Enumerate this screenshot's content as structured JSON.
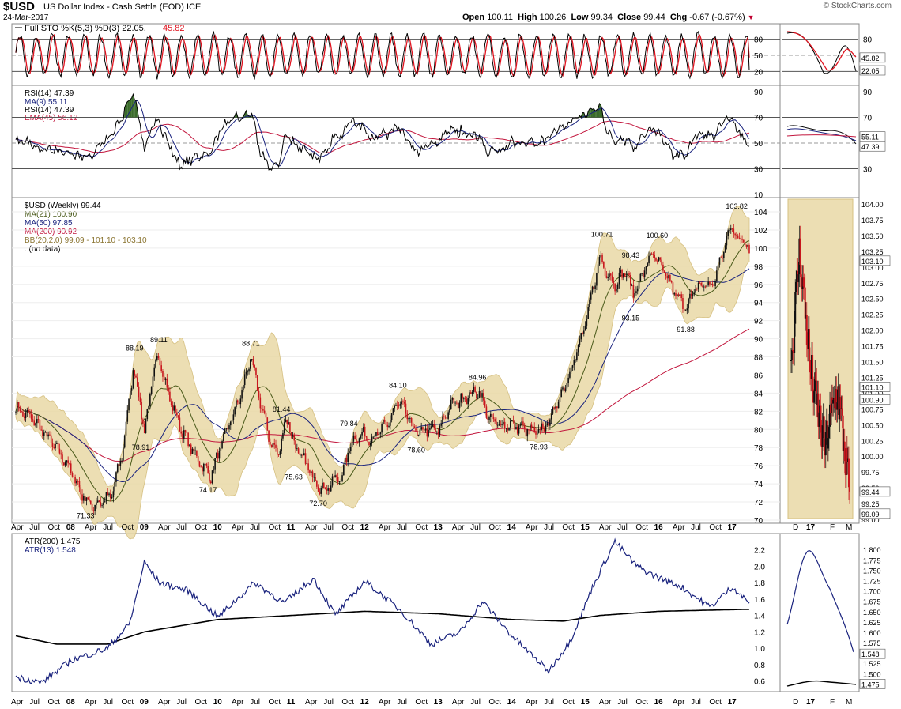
{
  "header": {
    "symbol": "$USD",
    "name": "US Dollar Index - Cash Settle (EOD)",
    "exchange": "ICE",
    "date": "24-Mar-2017",
    "brand": "© StockCharts.com",
    "open_label": "Open",
    "open": "100.11",
    "high_label": "High",
    "high": "100.26",
    "low_label": "Low",
    "low": "99.34",
    "close_label": "Close",
    "close": "99.44",
    "chg_label": "Chg",
    "chg": "-0.67 (-0.67%)"
  },
  "colors": {
    "price": "#000000",
    "ma21": "#4a5a1a",
    "ma50": "#1a237e",
    "ma200": "#c2163d",
    "bb_fill": "#e9d9a6",
    "bb_line": "#cfb66d",
    "sto_k": "#000000",
    "sto_d": "#e0131f",
    "rsi": "#000000",
    "rsi_ma": "#1a237e",
    "ema": "#c2163d",
    "atr200": "#000000",
    "atr13": "#1a237e",
    "up_candle": "#111111",
    "down_candle": "#c8161d",
    "ob_fill": "#3a6b2a"
  },
  "x_axis": {
    "main": [
      "Apr",
      "Jul",
      "Oct",
      "08",
      "Apr",
      "Jul",
      "Oct",
      "09",
      "Apr",
      "Jul",
      "Oct",
      "10",
      "Apr",
      "Jul",
      "Oct",
      "11",
      "Apr",
      "Jul",
      "Oct",
      "12",
      "Apr",
      "Jul",
      "Oct",
      "13",
      "Apr",
      "Jul",
      "Oct",
      "14",
      "Apr",
      "Jul",
      "Oct",
      "15",
      "Apr",
      "Jul",
      "Oct",
      "16",
      "Apr",
      "Jul",
      "Oct",
      "17"
    ],
    "side": [
      "D",
      "17",
      "F",
      "M"
    ]
  },
  "chart_data": [
    {
      "type": "line",
      "panel": "stochastic",
      "legend": "Full STO %K(5,3) %D(3) 22.05, 45.82",
      "legend_main": "Full STO %K(5,3) %D(3) 22.05,",
      "legend_val": "45.82",
      "ylim": [
        0,
        100
      ],
      "ticks": [
        80,
        50,
        20
      ],
      "side_ticks": [
        "80",
        "50",
        "20"
      ],
      "side_badges": [
        "45.82",
        "22.05"
      ],
      "series": [
        {
          "name": "%K",
          "last": 22.05
        },
        {
          "name": "%D",
          "last": 45.82
        }
      ]
    },
    {
      "type": "line",
      "panel": "rsi",
      "legends": [
        "RSI(14) 47.39",
        "MA(9) 55.11",
        "RSI(14) 47.39",
        "EMA(45) 56.12"
      ],
      "ylim": [
        10,
        90
      ],
      "ticks": [
        90,
        70,
        50,
        30,
        10
      ],
      "side_ticks": [
        "90",
        "70",
        "50",
        "30"
      ],
      "side_badges": [
        "55.11",
        "47.39"
      ],
      "series": [
        {
          "name": "RSI(14)",
          "last": 47.39
        },
        {
          "name": "MA(9)",
          "last": 55.11
        },
        {
          "name": "EMA(45)",
          "last": 56.12
        }
      ]
    },
    {
      "type": "candlestick",
      "panel": "price",
      "title": "$USD (Weekly) 99.44",
      "legends": [
        "MA(21) 100.90",
        "MA(50) 97.85",
        "MA(200) 90.92",
        "BB(20,2.0) 99.09 - 101.10 - 103.10",
        ". (no data)"
      ],
      "ylim": [
        70,
        104
      ],
      "ticks": [
        104,
        102,
        100,
        98,
        96,
        94,
        92,
        90,
        88,
        86,
        84,
        82,
        80,
        78,
        76,
        74,
        72,
        70
      ],
      "annotations": [
        {
          "label": "71.33",
          "date": "2008-03",
          "value": 71.33,
          "pos": "below"
        },
        {
          "label": "88.19",
          "date": "2008-11",
          "value": 88.19,
          "pos": "above"
        },
        {
          "label": "78.91",
          "date": "2008-12",
          "value": 78.91,
          "pos": "below"
        },
        {
          "label": "89.11",
          "date": "2009-03",
          "value": 89.11,
          "pos": "above"
        },
        {
          "label": "74.17",
          "date": "2009-11",
          "value": 74.17,
          "pos": "below"
        },
        {
          "label": "88.71",
          "date": "2010-06",
          "value": 88.71,
          "pos": "above"
        },
        {
          "label": "81.44",
          "date": "2010-11",
          "value": 81.44,
          "pos": "above"
        },
        {
          "label": "75.63",
          "date": "2011-01",
          "value": 75.63,
          "pos": "below"
        },
        {
          "label": "72.70",
          "date": "2011-05",
          "value": 72.7,
          "pos": "below"
        },
        {
          "label": "79.84",
          "date": "2011-10",
          "value": 79.84,
          "pos": "above"
        },
        {
          "label": "84.10",
          "date": "2012-06",
          "value": 84.1,
          "pos": "above"
        },
        {
          "label": "78.60",
          "date": "2012-09",
          "value": 78.6,
          "pos": "below"
        },
        {
          "label": "84.96",
          "date": "2013-07",
          "value": 84.96,
          "pos": "above"
        },
        {
          "label": "78.93",
          "date": "2014-05",
          "value": 78.93,
          "pos": "below"
        },
        {
          "label": "100.71",
          "date": "2015-03",
          "value": 100.71,
          "pos": "above"
        },
        {
          "label": "98.43",
          "date": "2015-08",
          "value": 98.43,
          "pos": "above"
        },
        {
          "label": "93.15",
          "date": "2015-08",
          "value": 93.15,
          "pos": "below"
        },
        {
          "label": "100.60",
          "date": "2015-12",
          "value": 100.6,
          "pos": "above"
        },
        {
          "label": "91.88",
          "date": "2016-05",
          "value": 91.88,
          "pos": "below"
        },
        {
          "label": "103.82",
          "date": "2017-01",
          "value": 103.82,
          "pos": "above"
        }
      ],
      "series": [
        {
          "name": "$USD (Weekly)",
          "last": 99.44
        },
        {
          "name": "MA(21)",
          "last": 100.9
        },
        {
          "name": "MA(50)",
          "last": 97.85
        },
        {
          "name": "MA(200)",
          "last": 90.92
        },
        {
          "name": "BB(20,2.0)",
          "lower": 99.09,
          "mid": 101.1,
          "upper": 103.1
        }
      ]
    },
    {
      "type": "candlestick",
      "panel": "price-daily-inset",
      "ylim": [
        99.0,
        104.0
      ],
      "ticks": [
        "104.00",
        "103.75",
        "103.50",
        "103.25",
        "103.00",
        "102.75",
        "102.50",
        "102.25",
        "102.00",
        "101.75",
        "101.50",
        "101.25",
        "101.00",
        "100.75",
        "100.50",
        "100.25",
        "100.00",
        "99.75",
        "99.50",
        "99.25",
        "99.00"
      ],
      "badges": [
        "103.10",
        "101.10",
        "100.90",
        "99.44",
        "99.09"
      ]
    },
    {
      "type": "line",
      "panel": "atr",
      "legends": [
        "ATR(200) 1.475",
        "ATR(13) 1.548"
      ],
      "ylim": [
        0.5,
        2.35
      ],
      "ticks": [
        "2.2",
        "2.0",
        "1.8",
        "1.6",
        "1.4",
        "1.2",
        "1.0",
        "0.8",
        "0.6"
      ],
      "side_ticks": [
        "1.800",
        "1.775",
        "1.750",
        "1.725",
        "1.700",
        "1.675",
        "1.650",
        "1.625",
        "1.600",
        "1.575",
        "1.550",
        "1.525",
        "1.500",
        "1.475"
      ],
      "side_badges": [
        "1.548",
        "1.475"
      ],
      "series": [
        {
          "name": "ATR(200)",
          "last": 1.475
        },
        {
          "name": "ATR(13)",
          "last": 1.548
        }
      ]
    }
  ]
}
